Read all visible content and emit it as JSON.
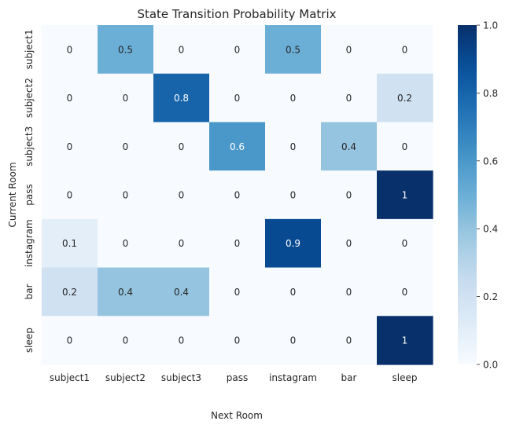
{
  "chart_data": {
    "type": "heatmap",
    "title": "State Transition Probability Matrix",
    "xlabel": "Next Room",
    "ylabel": "Current Room",
    "x_categories": [
      "subject1",
      "subject2",
      "subject3",
      "pass",
      "instagram",
      "bar",
      "sleep"
    ],
    "y_categories": [
      "subject1",
      "subject2",
      "subject3",
      "pass",
      "instagram",
      "bar",
      "sleep"
    ],
    "values": [
      [
        0,
        0.5,
        0,
        0,
        0.5,
        0,
        0
      ],
      [
        0,
        0,
        0.8,
        0,
        0,
        0,
        0.2
      ],
      [
        0,
        0,
        0,
        0.6,
        0,
        0.4,
        0
      ],
      [
        0,
        0,
        0,
        0,
        0,
        0,
        1
      ],
      [
        0.1,
        0,
        0,
        0,
        0.9,
        0,
        0
      ],
      [
        0.2,
        0.4,
        0.4,
        0,
        0,
        0,
        0
      ],
      [
        0,
        0,
        0,
        0,
        0,
        0,
        1
      ]
    ],
    "value_labels": [
      [
        "0",
        "0.5",
        "0",
        "0",
        "0.5",
        "0",
        "0"
      ],
      [
        "0",
        "0",
        "0.8",
        "0",
        "0",
        "0",
        "0.2"
      ],
      [
        "0",
        "0",
        "0",
        "0.6",
        "0",
        "0.4",
        "0"
      ],
      [
        "0",
        "0",
        "0",
        "0",
        "0",
        "0",
        "1"
      ],
      [
        "0.1",
        "0",
        "0",
        "0",
        "0.9",
        "0",
        "0"
      ],
      [
        "0.2",
        "0.4",
        "0.4",
        "0",
        "0",
        "0",
        "0"
      ],
      [
        "0",
        "0",
        "0",
        "0",
        "0",
        "0",
        "1"
      ]
    ],
    "colorscale": "Blues",
    "color_range": [
      0,
      1
    ],
    "colorbar_ticks": [
      "0.0",
      "0.2",
      "0.4",
      "0.6",
      "0.8",
      "1.0"
    ],
    "colorbar_tick_values": [
      0,
      0.2,
      0.4,
      0.6,
      0.8,
      1.0
    ],
    "colors": {
      "low": "#f7fbff",
      "high": "#08306b",
      "text_dark": "#262626",
      "text_light": "#ffffff"
    }
  }
}
